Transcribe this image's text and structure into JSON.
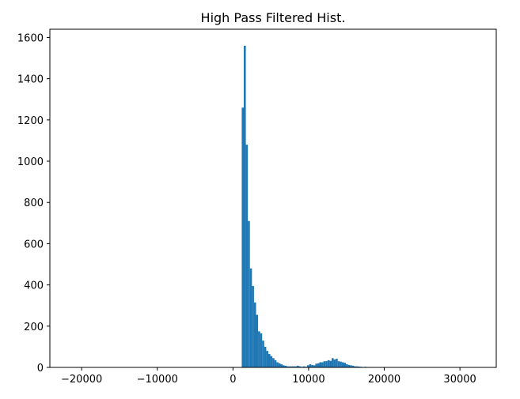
{
  "chart_data": {
    "type": "bar",
    "title": "High Pass Filtered Hist.",
    "xlabel": "",
    "ylabel": "",
    "xlim": [
      -24200,
      34800
    ],
    "ylim": [
      0,
      1640
    ],
    "xticks": [
      -20000,
      -10000,
      0,
      10000,
      20000,
      30000
    ],
    "xtick_labels": [
      "−20000",
      "−10000",
      "0",
      "10000",
      "20000",
      "30000"
    ],
    "yticks": [
      0,
      200,
      400,
      600,
      800,
      1000,
      1200,
      1400,
      1600
    ],
    "ytick_labels": [
      "0",
      "200",
      "400",
      "600",
      "800",
      "1000",
      "1200",
      "1400",
      "1600"
    ],
    "grid": false,
    "bar_color": "#1f77b4",
    "bin_width": 270,
    "bin_starts": [
      1160,
      1430,
      1700,
      1970,
      2240,
      2510,
      2780,
      3050,
      3320,
      3590,
      3860,
      4130,
      4400,
      4670,
      4940,
      5210,
      5480,
      5750,
      6020,
      6290,
      6560,
      6830,
      7100,
      7370,
      7640,
      7910,
      8180,
      8450,
      8720,
      8990,
      9260,
      9530,
      9800,
      10070,
      10340,
      10610,
      10880,
      11150,
      11420,
      11690,
      11960,
      12230,
      12500,
      12770,
      13040,
      13310,
      13580,
      13850,
      14120,
      14390,
      14660,
      14930,
      15200,
      15470,
      15740,
      16010,
      16280,
      16550,
      16820,
      17090,
      17360,
      17630,
      17900,
      18170,
      18440,
      18710,
      18980
    ],
    "values": [
      1260,
      1560,
      1080,
      710,
      480,
      395,
      315,
      255,
      175,
      165,
      130,
      100,
      80,
      65,
      55,
      45,
      35,
      25,
      20,
      15,
      10,
      8,
      5,
      5,
      5,
      5,
      5,
      8,
      5,
      3,
      5,
      3,
      10,
      15,
      12,
      10,
      18,
      20,
      25,
      25,
      30,
      30,
      35,
      32,
      45,
      38,
      42,
      30,
      28,
      25,
      22,
      15,
      12,
      10,
      8,
      5,
      5,
      4,
      3,
      2,
      3,
      2,
      2,
      1,
      1,
      1,
      1
    ]
  }
}
